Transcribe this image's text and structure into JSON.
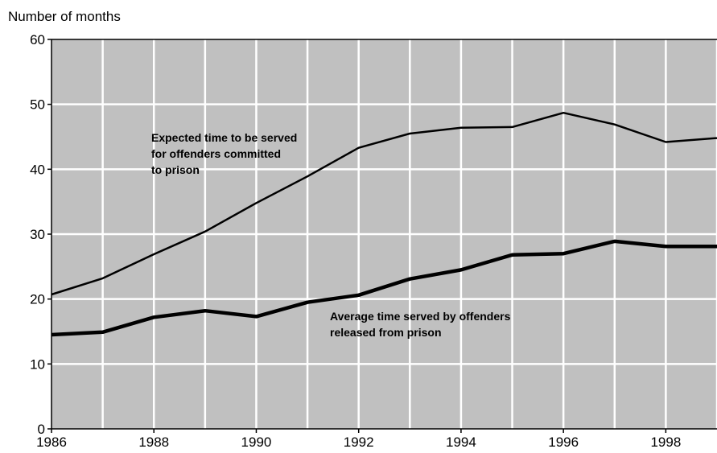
{
  "chart_data": {
    "type": "line",
    "title": "",
    "xlabel": "",
    "ylabel": "Number of months",
    "xlim": [
      1986,
      1999
    ],
    "ylim": [
      0,
      60
    ],
    "x_ticks": [
      "1986",
      "1988",
      "1990",
      "1992",
      "1994",
      "1996",
      "1998"
    ],
    "y_ticks": [
      "0",
      "10",
      "20",
      "30",
      "40",
      "50",
      "60"
    ],
    "grid": true,
    "x": [
      1986,
      1987,
      1988,
      1989,
      1990,
      1991,
      1992,
      1993,
      1994,
      1995,
      1996,
      1997,
      1998,
      1999
    ],
    "series": [
      {
        "values": [
          20.7,
          23.2,
          26.9,
          30.4,
          34.8,
          38.9,
          43.3,
          45.5,
          46.4,
          46.5,
          48.7,
          46.9,
          44.2,
          44.8
        ],
        "color": "#000000",
        "annotation": [
          "Expected time to be served",
          "for offenders committed",
          "to prison"
        ]
      },
      {
        "values": [
          14.5,
          14.9,
          17.2,
          18.2,
          17.3,
          19.5,
          20.6,
          23.1,
          24.5,
          26.8,
          27.0,
          28.9,
          28.1,
          28.1
        ],
        "color": "#000000",
        "annotation": [
          "Average time served by offenders",
          "released from prison"
        ]
      }
    ],
    "colors": {
      "plot_background": "#c0c0c0",
      "gridline": "#ffffff",
      "line": "#000000"
    }
  }
}
